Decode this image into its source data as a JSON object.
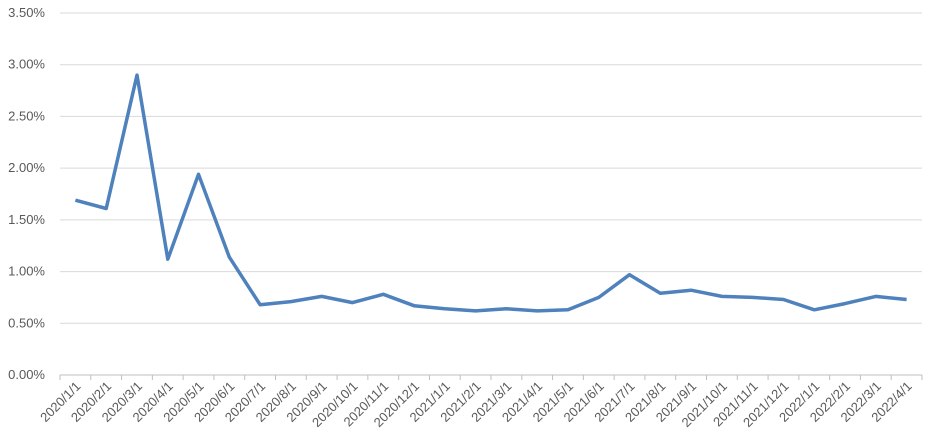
{
  "chart_data": {
    "type": "line",
    "categories": [
      "2020/1/1",
      "2020/2/1",
      "2020/3/1",
      "2020/4/1",
      "2020/5/1",
      "2020/6/1",
      "2020/7/1",
      "2020/8/1",
      "2020/9/1",
      "2020/10/1",
      "2020/11/1",
      "2020/12/1",
      "2021/1/1",
      "2021/2/1",
      "2021/3/1",
      "2021/4/1",
      "2021/5/1",
      "2021/6/1",
      "2021/7/1",
      "2021/8/1",
      "2021/9/1",
      "2021/10/1",
      "2021/11/1",
      "2021/12/1",
      "2022/1/1",
      "2022/2/1",
      "2022/3/1",
      "2022/4/1"
    ],
    "values": [
      1.69,
      1.61,
      2.9,
      1.12,
      1.94,
      1.14,
      0.68,
      0.71,
      0.76,
      0.7,
      0.78,
      0.67,
      0.64,
      0.62,
      0.64,
      0.62,
      0.63,
      0.75,
      0.97,
      0.79,
      0.82,
      0.76,
      0.75,
      0.73,
      0.63,
      0.69,
      0.76,
      0.73
    ],
    "color": "#4f81bd",
    "ylim": [
      0,
      3.5
    ],
    "yticks": [
      {
        "value": 0,
        "label": "0.00%"
      },
      {
        "value": 0.5,
        "label": "0.50%"
      },
      {
        "value": 1,
        "label": "1.00%"
      },
      {
        "value": 1.5,
        "label": "1.50%"
      },
      {
        "value": 2,
        "label": "2.00%"
      },
      {
        "value": 2.5,
        "label": "2.50%"
      },
      {
        "value": 3,
        "label": "3.00%"
      },
      {
        "value": 3.5,
        "label": "3.50%"
      }
    ],
    "grid": true
  }
}
